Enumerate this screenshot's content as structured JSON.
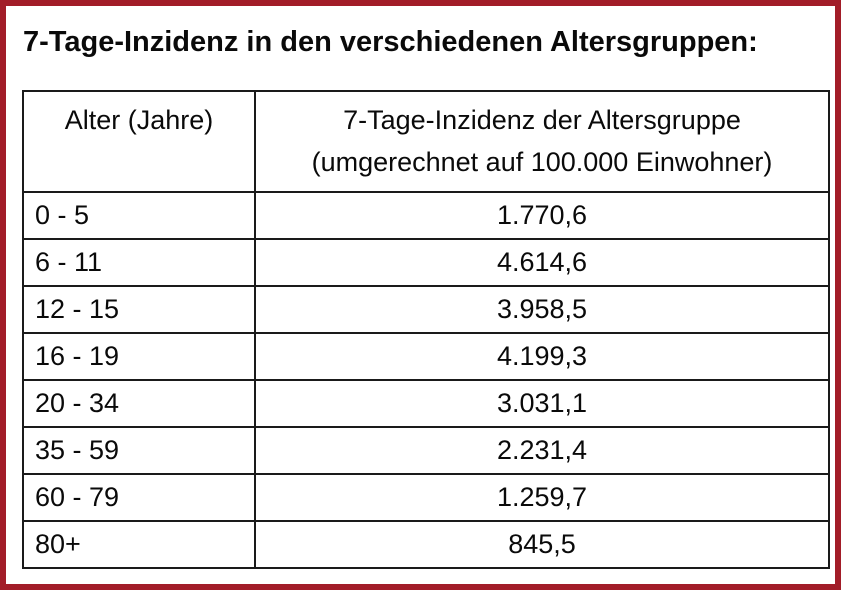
{
  "title": "7-Tage-Inzidenz in den verschiedenen Altersgruppen:",
  "frame": {
    "border_color": "#a21d28",
    "table_border_color": "#1a1a1a"
  },
  "table": {
    "headers": {
      "age": "Alter (Jahre)",
      "incidence_line1": "7-Tage-Inzidenz der Altersgruppe",
      "incidence_line2": "(umgerechnet auf 100.000 Einwohner)"
    },
    "rows": [
      {
        "age": "0 - 5",
        "incidence": "1.770,6"
      },
      {
        "age": "6 - 11",
        "incidence": "4.614,6"
      },
      {
        "age": "12 - 15",
        "incidence": "3.958,5"
      },
      {
        "age": "16 - 19",
        "incidence": "4.199,3"
      },
      {
        "age": "20 - 34",
        "incidence": "3.031,1"
      },
      {
        "age": "35 - 59",
        "incidence": "2.231,4"
      },
      {
        "age": "60 - 79",
        "incidence": "1.259,7"
      },
      {
        "age": "80+",
        "incidence": "845,5"
      }
    ]
  },
  "chart_data": {
    "type": "table",
    "title": "7-Tage-Inzidenz in den verschiedenen Altersgruppen:",
    "columns": [
      "Alter (Jahre)",
      "7-Tage-Inzidenz der Altersgruppe (umgerechnet auf 100.000 Einwohner)"
    ],
    "categories": [
      "0 - 5",
      "6 - 11",
      "12 - 15",
      "16 - 19",
      "20 - 34",
      "35 - 59",
      "60 - 79",
      "80+"
    ],
    "values": [
      1770.6,
      4614.6,
      3958.5,
      4199.3,
      3031.1,
      2231.4,
      1259.7,
      845.5
    ]
  }
}
